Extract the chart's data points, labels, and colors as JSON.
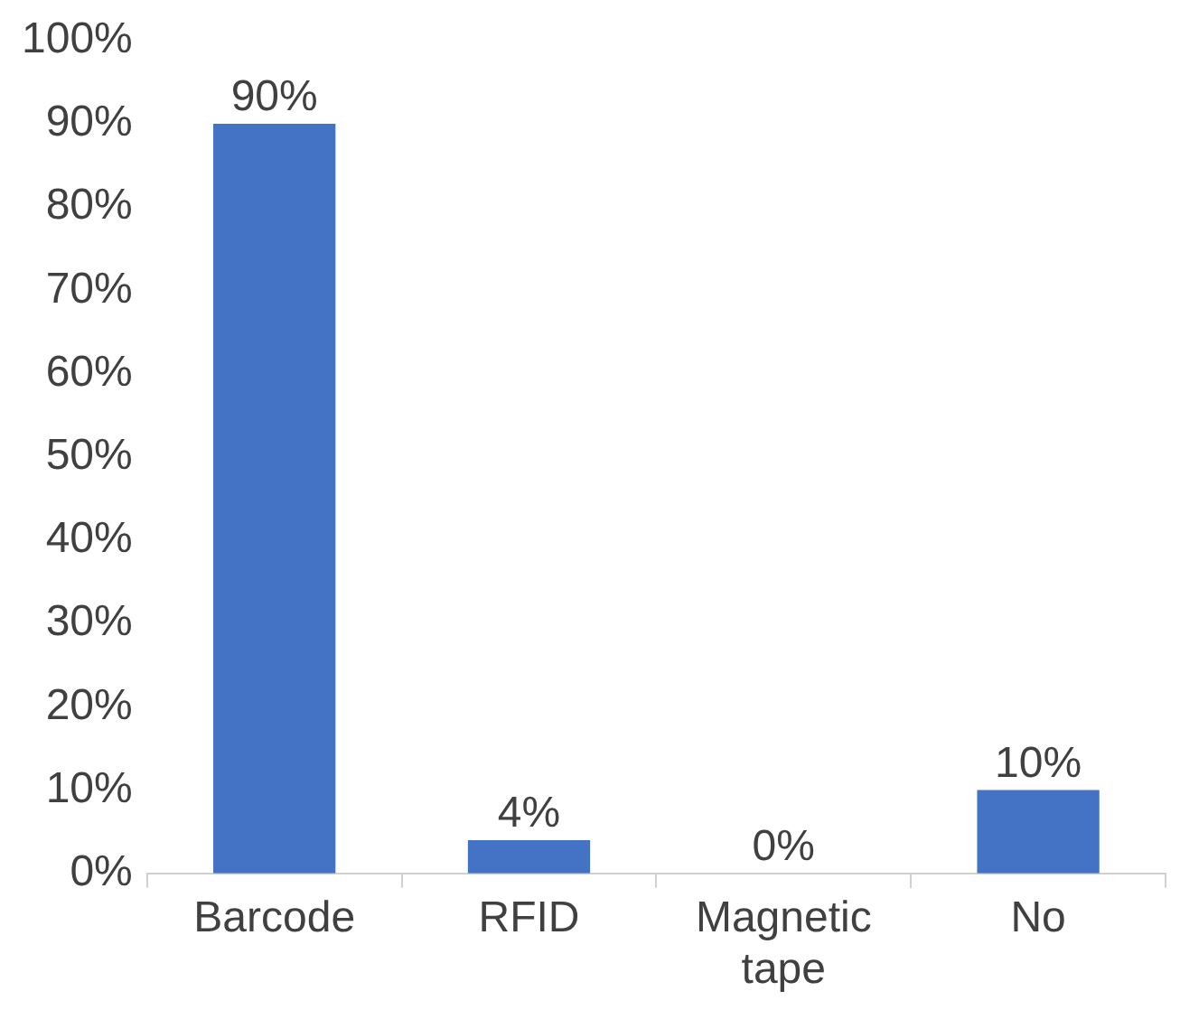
{
  "chart_data": {
    "type": "bar",
    "categories": [
      "Barcode",
      "RFID",
      "Magnetic tape",
      "No"
    ],
    "values": [
      90,
      4,
      0,
      10
    ],
    "color": "#4472c4",
    "value_labels": [
      "90%",
      "4%",
      "0%",
      "10%"
    ],
    "ylim": [
      0,
      100
    ],
    "yticks": [
      {
        "value": 0,
        "label": "0%"
      },
      {
        "value": 10,
        "label": "10%"
      },
      {
        "value": 20,
        "label": "20%"
      },
      {
        "value": 30,
        "label": "30%"
      },
      {
        "value": 40,
        "label": "40%"
      },
      {
        "value": 50,
        "label": "50%"
      },
      {
        "value": 60,
        "label": "60%"
      },
      {
        "value": 70,
        "label": "70%"
      },
      {
        "value": 80,
        "label": "80%"
      },
      {
        "value": 90,
        "label": "90%"
      },
      {
        "value": 100,
        "label": "100%"
      }
    ],
    "grid": false,
    "legend": false
  }
}
